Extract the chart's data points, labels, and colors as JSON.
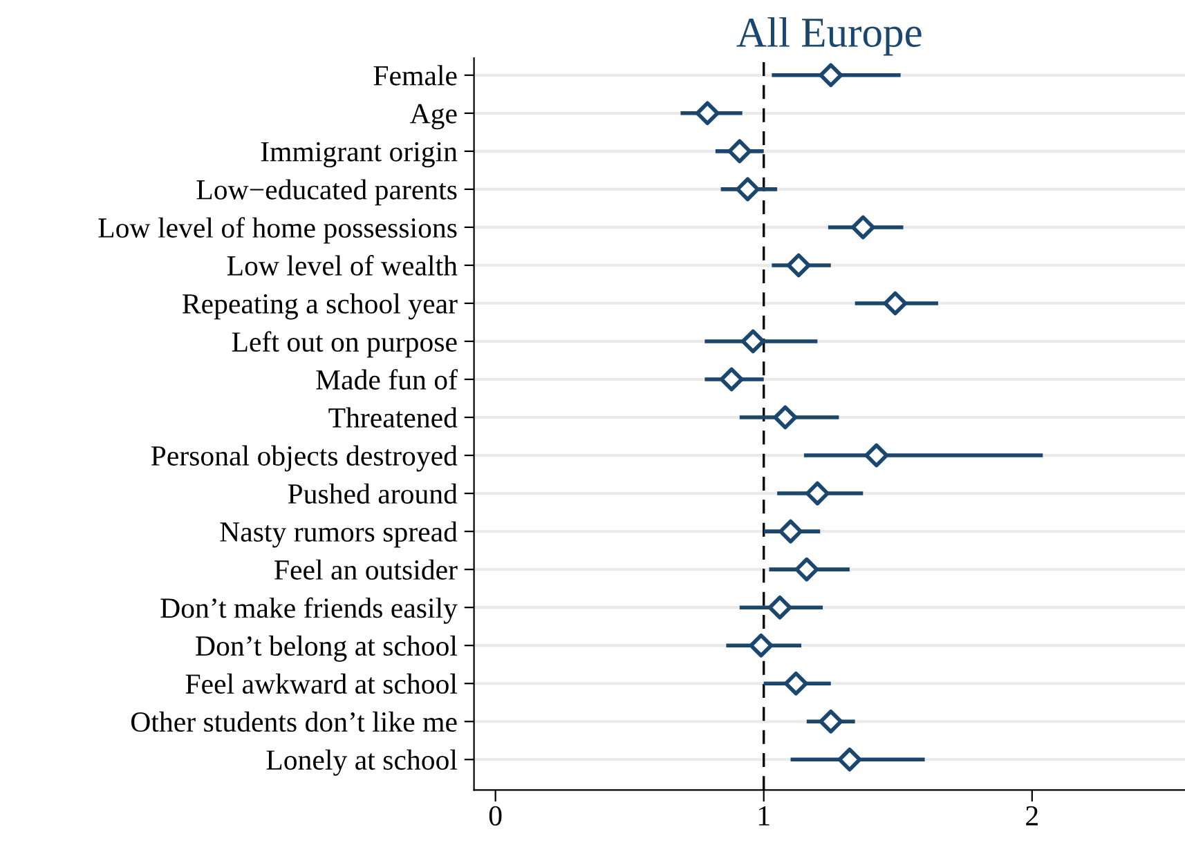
{
  "chart_data": {
    "type": "scatter",
    "orientation": "horizontal",
    "title": "All Europe",
    "categories": [
      "Female",
      "Age",
      "Immigrant origin",
      "Low−educated parents",
      "Low level of home possessions",
      "Low level of wealth",
      "Repeating a school year",
      "Left out on purpose",
      "Made fun of",
      "Threatened",
      "Personal objects destroyed",
      "Pushed around",
      "Nasty rumors spread",
      "Feel an outsider",
      "Don’t make friends easily",
      "Don’t belong at school",
      "Feel awkward at school",
      "Other students don’t like me",
      "Lonely at school"
    ],
    "series": [
      {
        "color": "#1a476f",
        "values": [
          1.25,
          0.79,
          0.91,
          0.94,
          1.37,
          1.13,
          1.49,
          0.96,
          0.88,
          1.08,
          1.42,
          1.2,
          1.1,
          1.16,
          1.06,
          0.99,
          1.12,
          1.25,
          1.32
        ],
        "errors": [
          [
            1.03,
            1.51
          ],
          [
            0.69,
            0.92
          ],
          [
            0.82,
            1.0
          ],
          [
            0.84,
            1.05
          ],
          [
            1.24,
            1.52
          ],
          [
            1.03,
            1.25
          ],
          [
            1.34,
            1.65
          ],
          [
            0.78,
            1.2
          ],
          [
            0.78,
            1.0
          ],
          [
            0.91,
            1.28
          ],
          [
            1.15,
            2.04
          ],
          [
            1.05,
            1.37
          ],
          [
            1.0,
            1.21
          ],
          [
            1.02,
            1.32
          ],
          [
            0.91,
            1.22
          ],
          [
            0.86,
            1.14
          ],
          [
            1.0,
            1.25
          ],
          [
            1.16,
            1.34
          ],
          [
            1.1,
            1.6
          ]
        ]
      }
    ],
    "xlim": [
      -0.08,
      2.57
    ],
    "xticks": [
      0,
      1,
      2
    ],
    "ref_lines": [
      {
        "axis": "x",
        "value": 1,
        "label": null,
        "color": "#000000",
        "line_style": "dashed"
      }
    ],
    "grid": "y",
    "marker": "diamond",
    "legend": false
  }
}
